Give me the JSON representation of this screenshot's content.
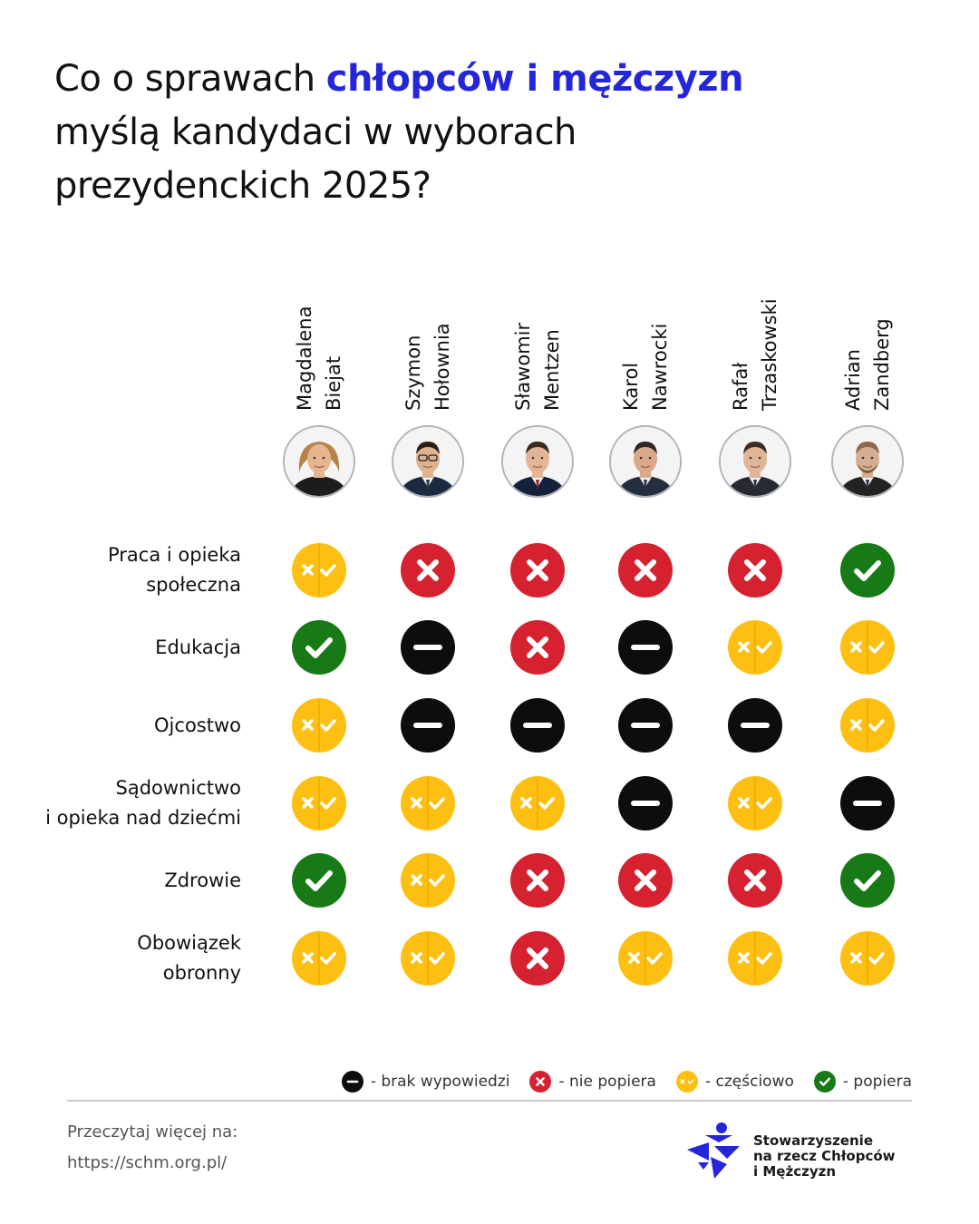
{
  "title": {
    "part1": "Co o sprawach ",
    "highlight": "chłopców i mężczyzn",
    "part2": "myślą kandydaci w wyborach prezydenckich 2025?"
  },
  "candidates": [
    {
      "first": "Magdalena",
      "last": "Biejat",
      "skin": "#e6b48f",
      "hair": "#b48349",
      "jacket": "#1c1c1c"
    },
    {
      "first": "Szymon",
      "last": "Hołownia",
      "skin": "#dfb290",
      "hair": "#2a1d16",
      "jacket": "#1b2a40"
    },
    {
      "first": "Sławomir",
      "last": "Mentzen",
      "skin": "#e2b597",
      "hair": "#3b2a1f",
      "jacket": "#15213a"
    },
    {
      "first": "Karol",
      "last": "Nawrocki",
      "skin": "#d9a98a",
      "hair": "#2e2622",
      "jacket": "#242e3e"
    },
    {
      "first": "Rafał",
      "last": "Trzaskowski",
      "skin": "#e0b496",
      "hair": "#3c2c22",
      "jacket": "#252a33"
    },
    {
      "first": "Adrian",
      "last": "Zandberg",
      "skin": "#d6ae92",
      "hair": "#8a6a4a",
      "jacket": "#222"
    }
  ],
  "rows": [
    {
      "label": "Praca i opieka\nspołeczna",
      "values": [
        "partial",
        "no",
        "no",
        "no",
        "no",
        "yes"
      ]
    },
    {
      "label": "Edukacja",
      "values": [
        "yes",
        "none",
        "no",
        "none",
        "partial",
        "partial"
      ]
    },
    {
      "label": "Ojcostwo",
      "values": [
        "partial",
        "none",
        "none",
        "none",
        "none",
        "partial"
      ]
    },
    {
      "label": "Sądownictwo\ni opieka nad dziećmi",
      "values": [
        "partial",
        "partial",
        "partial",
        "none",
        "partial",
        "none"
      ]
    },
    {
      "label": "Zdrowie",
      "values": [
        "yes",
        "partial",
        "no",
        "no",
        "no",
        "yes"
      ]
    },
    {
      "label": "Obowiązek\nobronny",
      "values": [
        "partial",
        "partial",
        "no",
        "partial",
        "partial",
        "partial"
      ]
    }
  ],
  "status_colors": {
    "none": "#0d0d0d",
    "no": "#d62230",
    "partial": "#fdc012",
    "yes": "#177a17"
  },
  "legend": [
    {
      "key": "none",
      "label": "- brak wypowiedzi"
    },
    {
      "key": "no",
      "label": "- nie popiera"
    },
    {
      "key": "partial",
      "label": "- częściowo"
    },
    {
      "key": "yes",
      "label": "- popiera"
    }
  ],
  "footer": {
    "read_more": "Przeczytaj więcej na:",
    "url": "https://schm.org.pl/",
    "org_name": "Stowarzyszenie\nna rzecz Chłopców\ni Mężczyzn"
  },
  "brand_color": "#2626d9"
}
